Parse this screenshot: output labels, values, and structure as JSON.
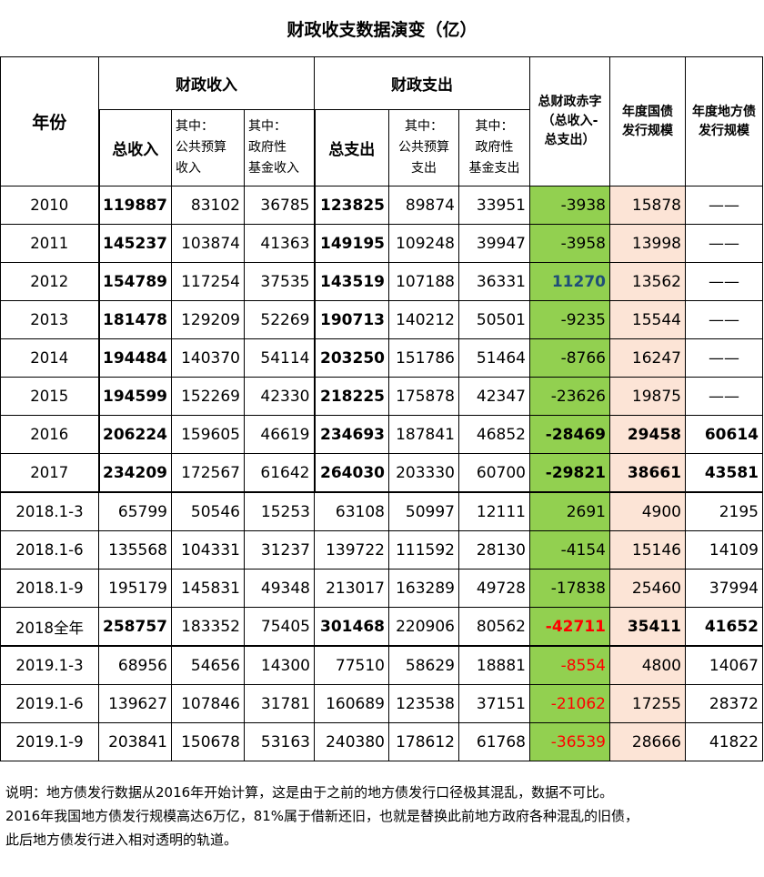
{
  "title": "财政收支数据演变（亿）",
  "headers": {
    "year": "年份",
    "revenue": "财政收入",
    "expenditure": "财政支出",
    "deficit_l1": "总财政赤字",
    "deficit_l2": "（总收入-",
    "deficit_l3": "总支出）",
    "nat_debt_l1": "年度国债",
    "nat_debt_l2": "发行规模",
    "local_debt_l1": "年度地方债",
    "local_debt_l2": "发行规模",
    "total_revenue": "总收入",
    "pub_budget_rev_l1": "其中：",
    "pub_budget_rev_l2": "公共预算",
    "pub_budget_rev_l3": "收入",
    "fund_rev_l1": "其中：",
    "fund_rev_l2": "政府性",
    "fund_rev_l3": "基金收入",
    "total_exp": "总支出",
    "pub_budget_exp_l1": "其中：",
    "pub_budget_exp_l2": "公共预算",
    "pub_budget_exp_l3": "支出",
    "fund_exp_l1": "其中：",
    "fund_exp_l2": "政府性",
    "fund_exp_l3": "基金支出"
  },
  "rows": [
    {
      "year": "2010",
      "total_rev": "119887",
      "pub_rev": "83102",
      "fund_rev": "36785",
      "total_exp": "123825",
      "pub_exp": "89874",
      "fund_exp": "33951",
      "deficit": "-3938",
      "nat_debt": "15878",
      "local_debt": "——"
    },
    {
      "year": "2011",
      "total_rev": "145237",
      "pub_rev": "103874",
      "fund_rev": "41363",
      "total_exp": "149195",
      "pub_exp": "109248",
      "fund_exp": "39947",
      "deficit": "-3958",
      "nat_debt": "13998",
      "local_debt": "——"
    },
    {
      "year": "2012",
      "total_rev": "154789",
      "pub_rev": "117254",
      "fund_rev": "37535",
      "total_exp": "143519",
      "pub_exp": "107188",
      "fund_exp": "36331",
      "deficit": "11270",
      "nat_debt": "13562",
      "local_debt": "——"
    },
    {
      "year": "2013",
      "total_rev": "181478",
      "pub_rev": "129209",
      "fund_rev": "52269",
      "total_exp": "190713",
      "pub_exp": "140212",
      "fund_exp": "50501",
      "deficit": "-9235",
      "nat_debt": "15544",
      "local_debt": "——"
    },
    {
      "year": "2014",
      "total_rev": "194484",
      "pub_rev": "140370",
      "fund_rev": "54114",
      "total_exp": "203250",
      "pub_exp": "151786",
      "fund_exp": "51464",
      "deficit": "-8766",
      "nat_debt": "16247",
      "local_debt": "——"
    },
    {
      "year": "2015",
      "total_rev": "194599",
      "pub_rev": "152269",
      "fund_rev": "42330",
      "total_exp": "218225",
      "pub_exp": "175878",
      "fund_exp": "42347",
      "deficit": "-23626",
      "nat_debt": "19875",
      "local_debt": "——"
    },
    {
      "year": "2016",
      "total_rev": "206224",
      "pub_rev": "159605",
      "fund_rev": "46619",
      "total_exp": "234693",
      "pub_exp": "187841",
      "fund_exp": "46852",
      "deficit": "-28469",
      "nat_debt": "29458",
      "local_debt": "60614"
    },
    {
      "year": "2017",
      "total_rev": "234209",
      "pub_rev": "172567",
      "fund_rev": "61642",
      "total_exp": "264030",
      "pub_exp": "203330",
      "fund_exp": "60700",
      "deficit": "-29821",
      "nat_debt": "38661",
      "local_debt": "43581"
    },
    {
      "year": "2018.1-3",
      "total_rev": "65799",
      "pub_rev": "50546",
      "fund_rev": "15253",
      "total_exp": "63108",
      "pub_exp": "50997",
      "fund_exp": "12111",
      "deficit": "2691",
      "nat_debt": "4900",
      "local_debt": "2195"
    },
    {
      "year": "2018.1-6",
      "total_rev": "135568",
      "pub_rev": "104331",
      "fund_rev": "31237",
      "total_exp": "139722",
      "pub_exp": "111592",
      "fund_exp": "28130",
      "deficit": "-4154",
      "nat_debt": "15146",
      "local_debt": "14109"
    },
    {
      "year": "2018.1-9",
      "total_rev": "195179",
      "pub_rev": "145831",
      "fund_rev": "49348",
      "total_exp": "213017",
      "pub_exp": "163289",
      "fund_exp": "49728",
      "deficit": "-17838",
      "nat_debt": "25460",
      "local_debt": "37994"
    },
    {
      "year": "2018全年",
      "total_rev": "258757",
      "pub_rev": "183352",
      "fund_rev": "75405",
      "total_exp": "301468",
      "pub_exp": "220906",
      "fund_exp": "80562",
      "deficit": "-42711",
      "nat_debt": "35411",
      "local_debt": "41652"
    },
    {
      "year": "2019.1-3",
      "total_rev": "68956",
      "pub_rev": "54656",
      "fund_rev": "14300",
      "total_exp": "77510",
      "pub_exp": "58629",
      "fund_exp": "18881",
      "deficit": "-8554",
      "nat_debt": "4800",
      "local_debt": "14067"
    },
    {
      "year": "2019.1-6",
      "total_rev": "139627",
      "pub_rev": "107846",
      "fund_rev": "31781",
      "total_exp": "160689",
      "pub_exp": "123538",
      "fund_exp": "37151",
      "deficit": "-21062",
      "nat_debt": "17255",
      "local_debt": "28372"
    },
    {
      "year": "2019.1-9",
      "total_rev": "203841",
      "pub_rev": "150678",
      "fund_rev": "53163",
      "total_exp": "240380",
      "pub_exp": "178612",
      "fund_exp": "61768",
      "deficit": "-36539",
      "nat_debt": "28666",
      "local_debt": "41822"
    }
  ],
  "note": {
    "line1": "说明：地方债发行数据从2016年开始计算，这是由于之前的地方债发行口径极其混乱，数据不可比。",
    "line2": "2016年我国地方债发行规模高达6万亿，81%属于借新还旧，也就是替换此前地方政府各种混乱的旧债，",
    "line3": "此后地方债发行进入相对透明的轨道。"
  },
  "colors": {
    "deficit_bg": "#92d050",
    "debt_bg": "#fce4d6",
    "highlight_red": "#ff0000",
    "highlight_blue": "#1f4e78"
  }
}
